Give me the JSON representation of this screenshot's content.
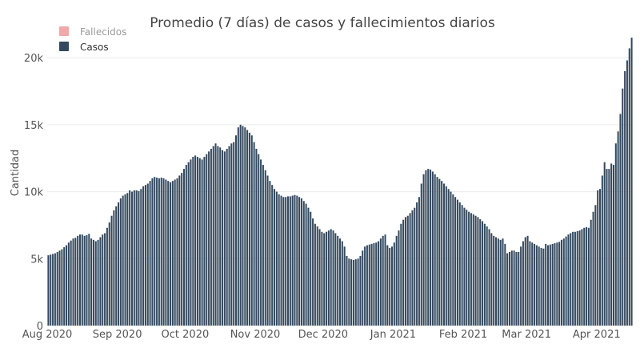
{
  "chart_data": {
    "type": "bar",
    "title": "Promedio (7 días) de casos y fallecimientos diarios",
    "xlabel": "",
    "ylabel": "Cantidad",
    "ylim": [
      0,
      21800
    ],
    "y_ticks": [
      0,
      5000,
      10000,
      15000,
      20000
    ],
    "y_tick_labels": [
      "0",
      "5k",
      "10k",
      "15k",
      "20k"
    ],
    "x_ticks": [
      "2020-08-01",
      "2020-09-01",
      "2020-10-01",
      "2020-11-01",
      "2020-12-01",
      "2021-01-01",
      "2021-02-01",
      "2021-03-01",
      "2021-04-01"
    ],
    "x_tick_labels": [
      "Aug 2020",
      "Sep 2020",
      "Oct 2020",
      "Nov 2020",
      "Dec 2020",
      "Jan 2021",
      "Feb 2021",
      "Mar 2021",
      "Apr 2021"
    ],
    "grid": true,
    "legend_position": "top-left",
    "legend": [
      {
        "name": "Fallecidos",
        "color": "#f0a8a8",
        "muted": true
      },
      {
        "name": "Casos",
        "color": "#34495e",
        "muted": false
      }
    ],
    "series": [
      {
        "name": "Casos",
        "color": "#34495e",
        "x": [
          "2020-08-01",
          "2020-08-02",
          "2020-08-03",
          "2020-08-04",
          "2020-08-05",
          "2020-08-06",
          "2020-08-07",
          "2020-08-08",
          "2020-08-09",
          "2020-08-10",
          "2020-08-11",
          "2020-08-12",
          "2020-08-13",
          "2020-08-14",
          "2020-08-15",
          "2020-08-16",
          "2020-08-17",
          "2020-08-18",
          "2020-08-19",
          "2020-08-20",
          "2020-08-21",
          "2020-08-22",
          "2020-08-23",
          "2020-08-24",
          "2020-08-25",
          "2020-08-26",
          "2020-08-27",
          "2020-08-28",
          "2020-08-29",
          "2020-08-30",
          "2020-08-31",
          "2020-09-01",
          "2020-09-02",
          "2020-09-03",
          "2020-09-04",
          "2020-09-05",
          "2020-09-06",
          "2020-09-07",
          "2020-09-08",
          "2020-09-09",
          "2020-09-10",
          "2020-09-11",
          "2020-09-12",
          "2020-09-13",
          "2020-09-14",
          "2020-09-15",
          "2020-09-16",
          "2020-09-17",
          "2020-09-18",
          "2020-09-19",
          "2020-09-20",
          "2020-09-21",
          "2020-09-22",
          "2020-09-23",
          "2020-09-24",
          "2020-09-25",
          "2020-09-26",
          "2020-09-27",
          "2020-09-28",
          "2020-09-29",
          "2020-09-30",
          "2020-10-01",
          "2020-10-02",
          "2020-10-03",
          "2020-10-04",
          "2020-10-05",
          "2020-10-06",
          "2020-10-07",
          "2020-10-08",
          "2020-10-09",
          "2020-10-10",
          "2020-10-11",
          "2020-10-12",
          "2020-10-13",
          "2020-10-14",
          "2020-10-15",
          "2020-10-16",
          "2020-10-17",
          "2020-10-18",
          "2020-10-19",
          "2020-10-20",
          "2020-10-21",
          "2020-10-22",
          "2020-10-23",
          "2020-10-24",
          "2020-10-25",
          "2020-10-26",
          "2020-10-27",
          "2020-10-28",
          "2020-10-29",
          "2020-10-30",
          "2020-10-31",
          "2020-11-01",
          "2020-11-02",
          "2020-11-03",
          "2020-11-04",
          "2020-11-05",
          "2020-11-06",
          "2020-11-07",
          "2020-11-08",
          "2020-11-09",
          "2020-11-10",
          "2020-11-11",
          "2020-11-12",
          "2020-11-13",
          "2020-11-14",
          "2020-11-15",
          "2020-11-16",
          "2020-11-17",
          "2020-11-18",
          "2020-11-19",
          "2020-11-20",
          "2020-11-21",
          "2020-11-22",
          "2020-11-23",
          "2020-11-24",
          "2020-11-25",
          "2020-11-26",
          "2020-11-27",
          "2020-11-28",
          "2020-11-29",
          "2020-11-30",
          "2020-12-01",
          "2020-12-02",
          "2020-12-03",
          "2020-12-04",
          "2020-12-05",
          "2020-12-06",
          "2020-12-07",
          "2020-12-08",
          "2020-12-09",
          "2020-12-10",
          "2020-12-11",
          "2020-12-12",
          "2020-12-13",
          "2020-12-14",
          "2020-12-15",
          "2020-12-16",
          "2020-12-17",
          "2020-12-18",
          "2020-12-19",
          "2020-12-20",
          "2020-12-21",
          "2020-12-22",
          "2020-12-23",
          "2020-12-24",
          "2020-12-25",
          "2020-12-26",
          "2020-12-27",
          "2020-12-28",
          "2020-12-29",
          "2020-12-30",
          "2020-12-31",
          "2021-01-01",
          "2021-01-02",
          "2021-01-03",
          "2021-01-04",
          "2021-01-05",
          "2021-01-06",
          "2021-01-07",
          "2021-01-08",
          "2021-01-09",
          "2021-01-10",
          "2021-01-11",
          "2021-01-12",
          "2021-01-13",
          "2021-01-14",
          "2021-01-15",
          "2021-01-16",
          "2021-01-17",
          "2021-01-18",
          "2021-01-19",
          "2021-01-20",
          "2021-01-21",
          "2021-01-22",
          "2021-01-23",
          "2021-01-24",
          "2021-01-25",
          "2021-01-26",
          "2021-01-27",
          "2021-01-28",
          "2021-01-29",
          "2021-01-30",
          "2021-01-31",
          "2021-02-01",
          "2021-02-02",
          "2021-02-03",
          "2021-02-04",
          "2021-02-05",
          "2021-02-06",
          "2021-02-07",
          "2021-02-08",
          "2021-02-09",
          "2021-02-10",
          "2021-02-11",
          "2021-02-12",
          "2021-02-13",
          "2021-02-14",
          "2021-02-15",
          "2021-02-16",
          "2021-02-17",
          "2021-02-18",
          "2021-02-19",
          "2021-02-20",
          "2021-02-21",
          "2021-02-22",
          "2021-02-23",
          "2021-02-24",
          "2021-02-25",
          "2021-02-26",
          "2021-02-27",
          "2021-02-28",
          "2021-03-01",
          "2021-03-02",
          "2021-03-03",
          "2021-03-04",
          "2021-03-05",
          "2021-03-06",
          "2021-03-07",
          "2021-03-08",
          "2021-03-09",
          "2021-03-10",
          "2021-03-11",
          "2021-03-12",
          "2021-03-13",
          "2021-03-14",
          "2021-03-15",
          "2021-03-16",
          "2021-03-17",
          "2021-03-18",
          "2021-03-19",
          "2021-03-20",
          "2021-03-21",
          "2021-03-22",
          "2021-03-23",
          "2021-03-24",
          "2021-03-25",
          "2021-03-26",
          "2021-03-27",
          "2021-03-28",
          "2021-03-29",
          "2021-03-30",
          "2021-03-31",
          "2021-04-01",
          "2021-04-02",
          "2021-04-03",
          "2021-04-04",
          "2021-04-05",
          "2021-04-06",
          "2021-04-07",
          "2021-04-08",
          "2021-04-09",
          "2021-04-10",
          "2021-04-11",
          "2021-04-12",
          "2021-04-13",
          "2021-04-14",
          "2021-04-15",
          "2021-04-16"
        ],
        "values": [
          5250,
          5300,
          5350,
          5400,
          5500,
          5600,
          5700,
          5850,
          6000,
          6200,
          6350,
          6500,
          6550,
          6700,
          6800,
          6800,
          6700,
          6750,
          6850,
          6500,
          6400,
          6300,
          6400,
          6600,
          6800,
          6900,
          7300,
          7700,
          8200,
          8600,
          8900,
          9200,
          9500,
          9700,
          9800,
          9900,
          10100,
          10000,
          10100,
          10100,
          10050,
          10200,
          10400,
          10500,
          10600,
          10800,
          11000,
          11100,
          11050,
          11000,
          11050,
          11000,
          10900,
          10800,
          10700,
          10800,
          10900,
          11000,
          11200,
          11400,
          11700,
          12000,
          12200,
          12400,
          12600,
          12700,
          12600,
          12500,
          12400,
          12600,
          12800,
          13000,
          13200,
          13400,
          13600,
          13400,
          13300,
          13100,
          13000,
          13200,
          13400,
          13600,
          13700,
          14200,
          14800,
          15000,
          14900,
          14800,
          14600,
          14400,
          14200,
          13700,
          13200,
          12800,
          12400,
          12000,
          11600,
          11200,
          10800,
          10500,
          10200,
          10000,
          9800,
          9700,
          9600,
          9600,
          9650,
          9650,
          9700,
          9750,
          9700,
          9600,
          9500,
          9300,
          9100,
          8800,
          8500,
          8000,
          7600,
          7400,
          7200,
          7000,
          6900,
          7000,
          7100,
          7200,
          7100,
          6900,
          6700,
          6500,
          6300,
          5900,
          5200,
          5000,
          4950,
          4900,
          4950,
          5000,
          5200,
          5600,
          5900,
          6000,
          6050,
          6100,
          6150,
          6200,
          6300,
          6500,
          6700,
          6800,
          6000,
          5800,
          5900,
          6200,
          6700,
          7100,
          7600,
          7900,
          8100,
          8200,
          8400,
          8600,
          8800,
          9200,
          9600,
          10600,
          11300,
          11600,
          11700,
          11650,
          11500,
          11300,
          11100,
          10950,
          10800,
          10600,
          10400,
          10200,
          10000,
          9800,
          9600,
          9400,
          9200,
          9000,
          8800,
          8650,
          8500,
          8400,
          8300,
          8200,
          8100,
          7950,
          7800,
          7600,
          7400,
          7200,
          6900,
          6700,
          6600,
          6500,
          6400,
          6500,
          6100,
          5400,
          5500,
          5600,
          5600,
          5500,
          5500,
          5900,
          6300,
          6600,
          6700,
          6300,
          6200,
          6100,
          6000,
          5900,
          5800,
          5750,
          6100,
          6000,
          6050,
          6100,
          6150,
          6200,
          6250,
          6400,
          6500,
          6650,
          6800,
          6900,
          7000,
          7000,
          7050,
          7100,
          7200,
          7300,
          7350,
          7300,
          7900,
          8500,
          9000,
          10100,
          10200,
          11200,
          12200,
          11700,
          11700,
          12100,
          12000,
          13600,
          14500,
          15800,
          17700,
          19000,
          19800,
          20700,
          21500
        ]
      },
      {
        "name": "Fallecidos",
        "color": "#f0a8a8",
        "values": []
      }
    ]
  }
}
